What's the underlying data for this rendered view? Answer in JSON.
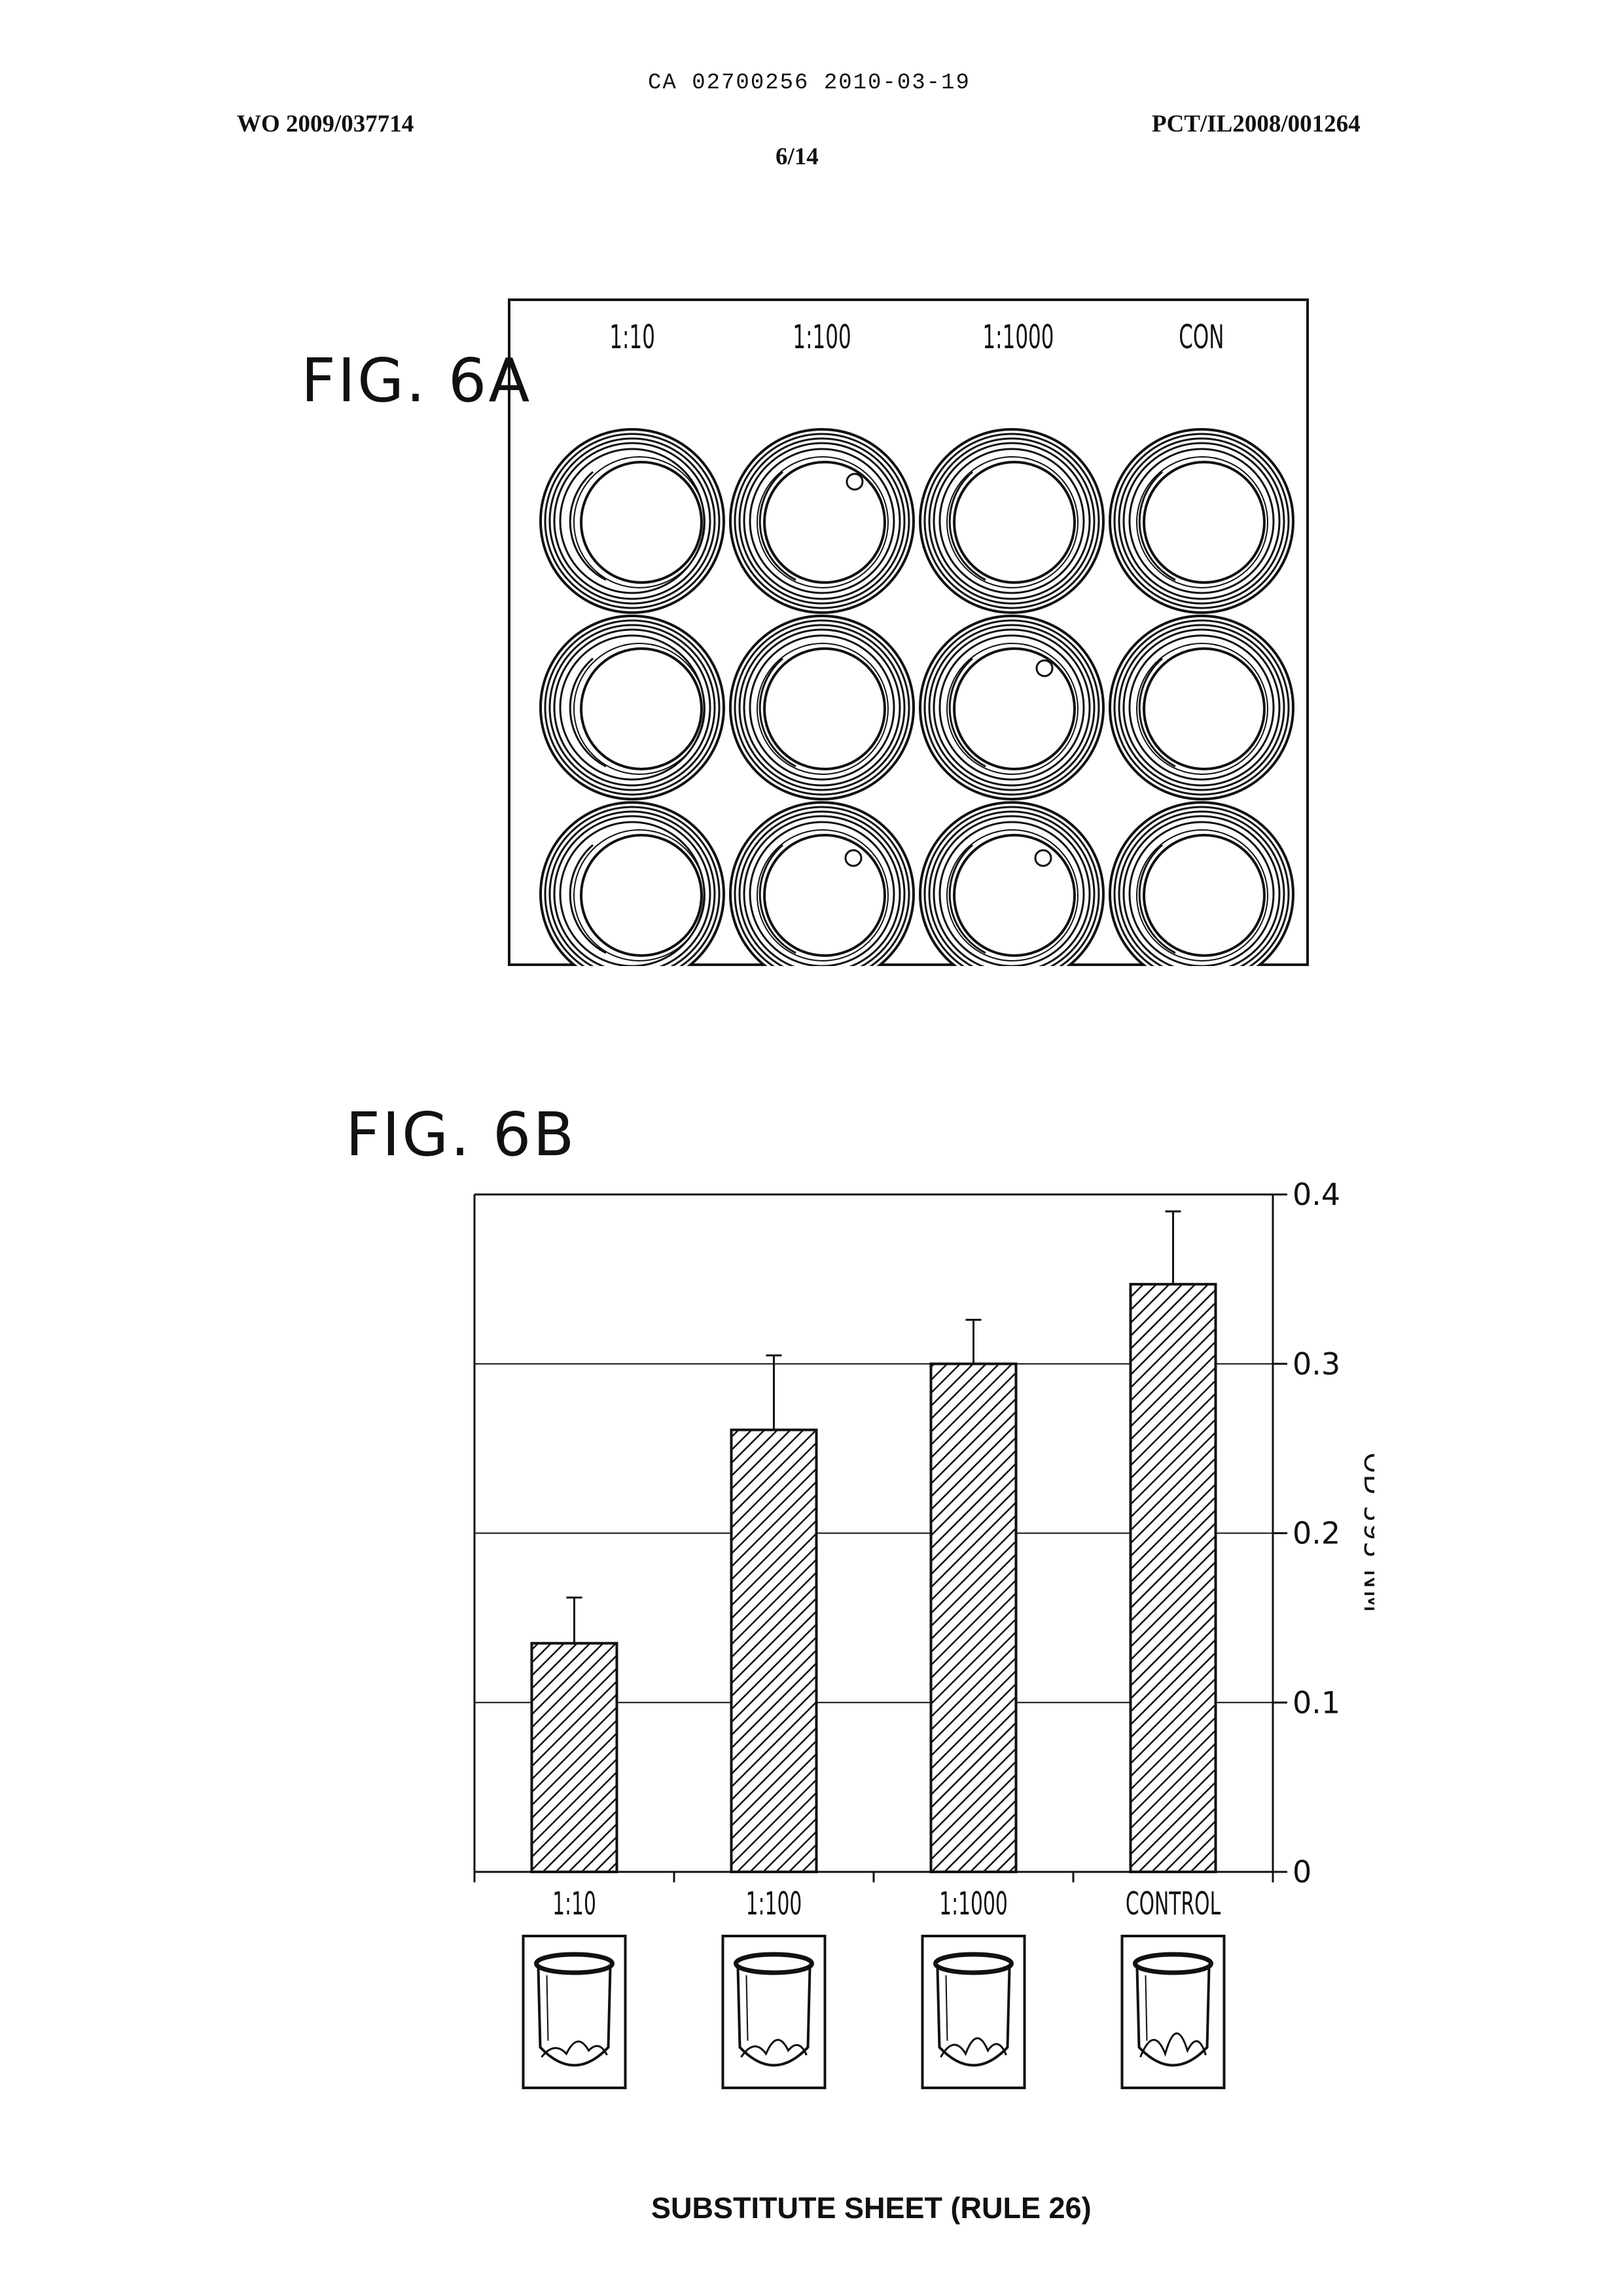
{
  "header": {
    "ca_number": "CA 02700256 2010-03-19",
    "wo_number": "WO 2009/037714",
    "pct_number": "PCT/IL2008/001264",
    "sheet": "6/14"
  },
  "fig6a": {
    "label": "FIG. 6A",
    "columns": [
      "1:10",
      "1:100",
      "1:1000",
      "CON"
    ],
    "rows": 3
  },
  "fig6b": {
    "label": "FIG. 6B"
  },
  "chart_data": {
    "type": "bar",
    "categories": [
      "1:10",
      "1:100",
      "1:1000",
      "CONTROL"
    ],
    "values": [
      0.135,
      0.261,
      0.3,
      0.347
    ],
    "errors": [
      0.027,
      0.044,
      0.026,
      0.043
    ],
    "ylabel": "OD 595 NM",
    "ylim": [
      0,
      0.4
    ],
    "yticks": [
      "0",
      "0.1",
      "0.2",
      "0.3",
      "0.4"
    ],
    "yaxis_side": "right",
    "grid": true,
    "bar_pattern": "diagonal-hatch"
  },
  "footer": {
    "text": "SUBSTITUTE SHEET (RULE 26)"
  }
}
